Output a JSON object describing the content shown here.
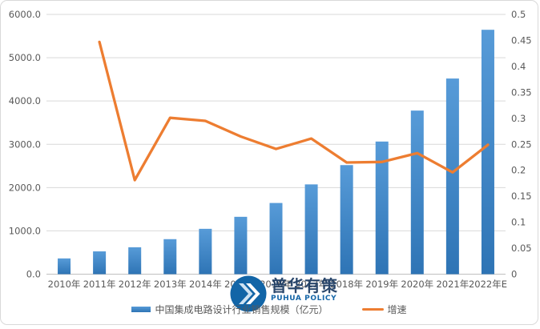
{
  "chart_data": {
    "type": "bar+line combo",
    "title": "",
    "categories": [
      "2010年",
      "2011年",
      "2012年",
      "2013年",
      "2014年",
      "2015年",
      "2016年",
      "2017年",
      "2018年",
      "2019年",
      "2020年",
      "2021年",
      "2022年E"
    ],
    "series": [
      {
        "name": "中国集成电路设计行业销售规模（亿元）",
        "type": "bar",
        "axis": "left",
        "values": [
          363.9,
          526.5,
          621.7,
          808.8,
          1047.4,
          1325.0,
          1644.3,
          2073.5,
          2519.3,
          3063.5,
          3778.4,
          4519.0,
          5645.0
        ]
      },
      {
        "name": "增速",
        "type": "line",
        "axis": "right",
        "values": [
          null,
          0.447,
          0.181,
          0.301,
          0.295,
          0.265,
          0.241,
          0.261,
          0.215,
          0.216,
          0.233,
          0.196,
          0.249
        ]
      }
    ],
    "left_axis": {
      "min": 0,
      "max": 6000,
      "step": 1000,
      "tick_labels": [
        "0.0",
        "1000.0",
        "2000.0",
        "3000.0",
        "4000.0",
        "5000.0",
        "6000.0"
      ]
    },
    "right_axis": {
      "min": 0,
      "max": 0.5,
      "step": 0.05,
      "tick_labels": [
        "0",
        "0.05",
        "0.1",
        "0.15",
        "0.2",
        "0.25",
        "0.3",
        "0.35",
        "0.4",
        "0.45",
        "0.5"
      ]
    },
    "grid": "horizontal gridlines on",
    "legend_position": "bottom"
  },
  "legend": {
    "bar_label": "中国集成电路设计行业销售规模（亿元）",
    "line_label": "增速"
  },
  "watermark": {
    "name_cn": "普华有策",
    "name_en": "PUHUA POLICY"
  },
  "colors": {
    "bar_top": "#579bd8",
    "bar_bottom": "#2e74b5",
    "line": "#ed7d31",
    "text": "#595959",
    "grid": "#d9d9d9",
    "axis": "#bfbfbf",
    "watermark_dark": "#1a3a61",
    "watermark_blue": "#1566a8",
    "logo_fill": "#1265a7",
    "logo_chevron_light": "#cfe3f3",
    "logo_chevron_white": "#ffffff"
  }
}
